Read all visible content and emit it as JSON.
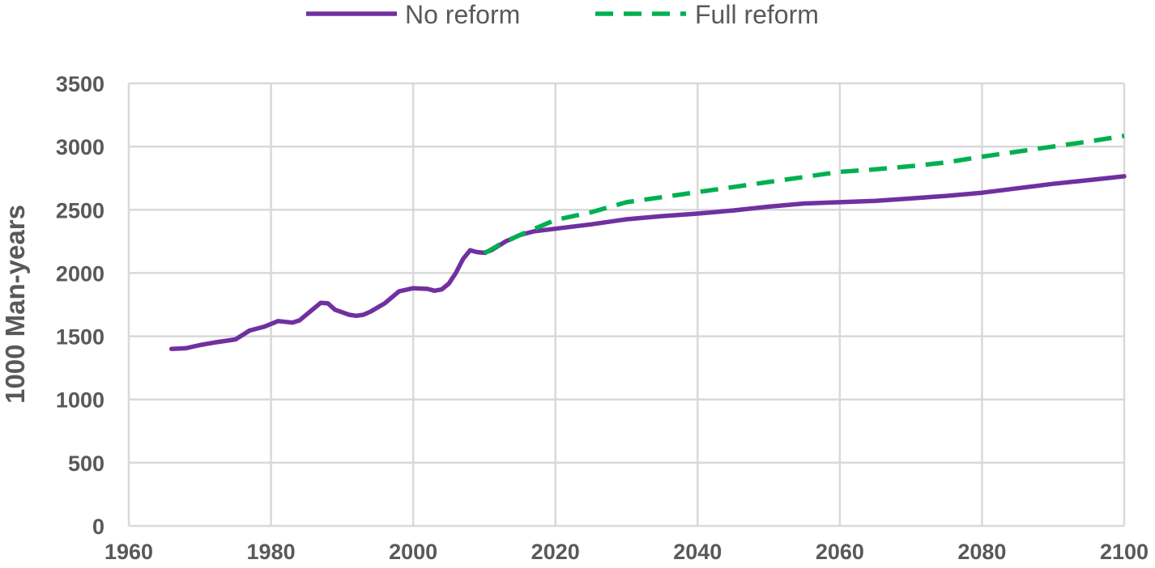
{
  "chart_data": {
    "type": "line",
    "title": "",
    "xlabel": "",
    "ylabel": "1000 Man-years",
    "xlim": [
      1960,
      2100
    ],
    "ylim": [
      0,
      3500
    ],
    "x_ticks": [
      1960,
      1980,
      2000,
      2020,
      2040,
      2060,
      2080,
      2100
    ],
    "y_ticks": [
      0,
      500,
      1000,
      1500,
      2000,
      2500,
      3000,
      3500
    ],
    "grid": true,
    "legend_position": "top",
    "series": [
      {
        "name": "No reform",
        "color": "#7030a0",
        "dash": "solid",
        "points": [
          [
            1966,
            1400
          ],
          [
            1968,
            1405
          ],
          [
            1970,
            1430
          ],
          [
            1972,
            1450
          ],
          [
            1975,
            1475
          ],
          [
            1977,
            1545
          ],
          [
            1979,
            1575
          ],
          [
            1981,
            1620
          ],
          [
            1983,
            1608
          ],
          [
            1984,
            1625
          ],
          [
            1987,
            1765
          ],
          [
            1988,
            1760
          ],
          [
            1989,
            1710
          ],
          [
            1991,
            1670
          ],
          [
            1992,
            1662
          ],
          [
            1993,
            1670
          ],
          [
            1994,
            1695
          ],
          [
            1996,
            1760
          ],
          [
            1998,
            1855
          ],
          [
            2000,
            1880
          ],
          [
            2002,
            1875
          ],
          [
            2003,
            1860
          ],
          [
            2004,
            1870
          ],
          [
            2005,
            1915
          ],
          [
            2006,
            2000
          ],
          [
            2007,
            2110
          ],
          [
            2008,
            2180
          ],
          [
            2009,
            2165
          ],
          [
            2010,
            2160
          ],
          [
            2011,
            2180
          ],
          [
            2013,
            2250
          ],
          [
            2015,
            2300
          ],
          [
            2017,
            2330
          ],
          [
            2020,
            2350
          ],
          [
            2025,
            2385
          ],
          [
            2030,
            2425
          ],
          [
            2035,
            2450
          ],
          [
            2040,
            2470
          ],
          [
            2045,
            2495
          ],
          [
            2050,
            2525
          ],
          [
            2055,
            2550
          ],
          [
            2060,
            2560
          ],
          [
            2065,
            2570
          ],
          [
            2070,
            2590
          ],
          [
            2075,
            2610
          ],
          [
            2080,
            2635
          ],
          [
            2085,
            2670
          ],
          [
            2090,
            2705
          ],
          [
            2095,
            2735
          ],
          [
            2100,
            2765
          ]
        ]
      },
      {
        "name": "Full reform",
        "color": "#00b050",
        "dash": "dashed",
        "points": [
          [
            2010,
            2155
          ],
          [
            2012,
            2220
          ],
          [
            2015,
            2300
          ],
          [
            2020,
            2420
          ],
          [
            2025,
            2480
          ],
          [
            2030,
            2560
          ],
          [
            2035,
            2600
          ],
          [
            2040,
            2640
          ],
          [
            2045,
            2680
          ],
          [
            2050,
            2720
          ],
          [
            2055,
            2760
          ],
          [
            2060,
            2800
          ],
          [
            2065,
            2820
          ],
          [
            2070,
            2845
          ],
          [
            2075,
            2875
          ],
          [
            2080,
            2920
          ],
          [
            2085,
            2960
          ],
          [
            2090,
            3000
          ],
          [
            2095,
            3040
          ],
          [
            2100,
            3085
          ]
        ]
      }
    ]
  }
}
